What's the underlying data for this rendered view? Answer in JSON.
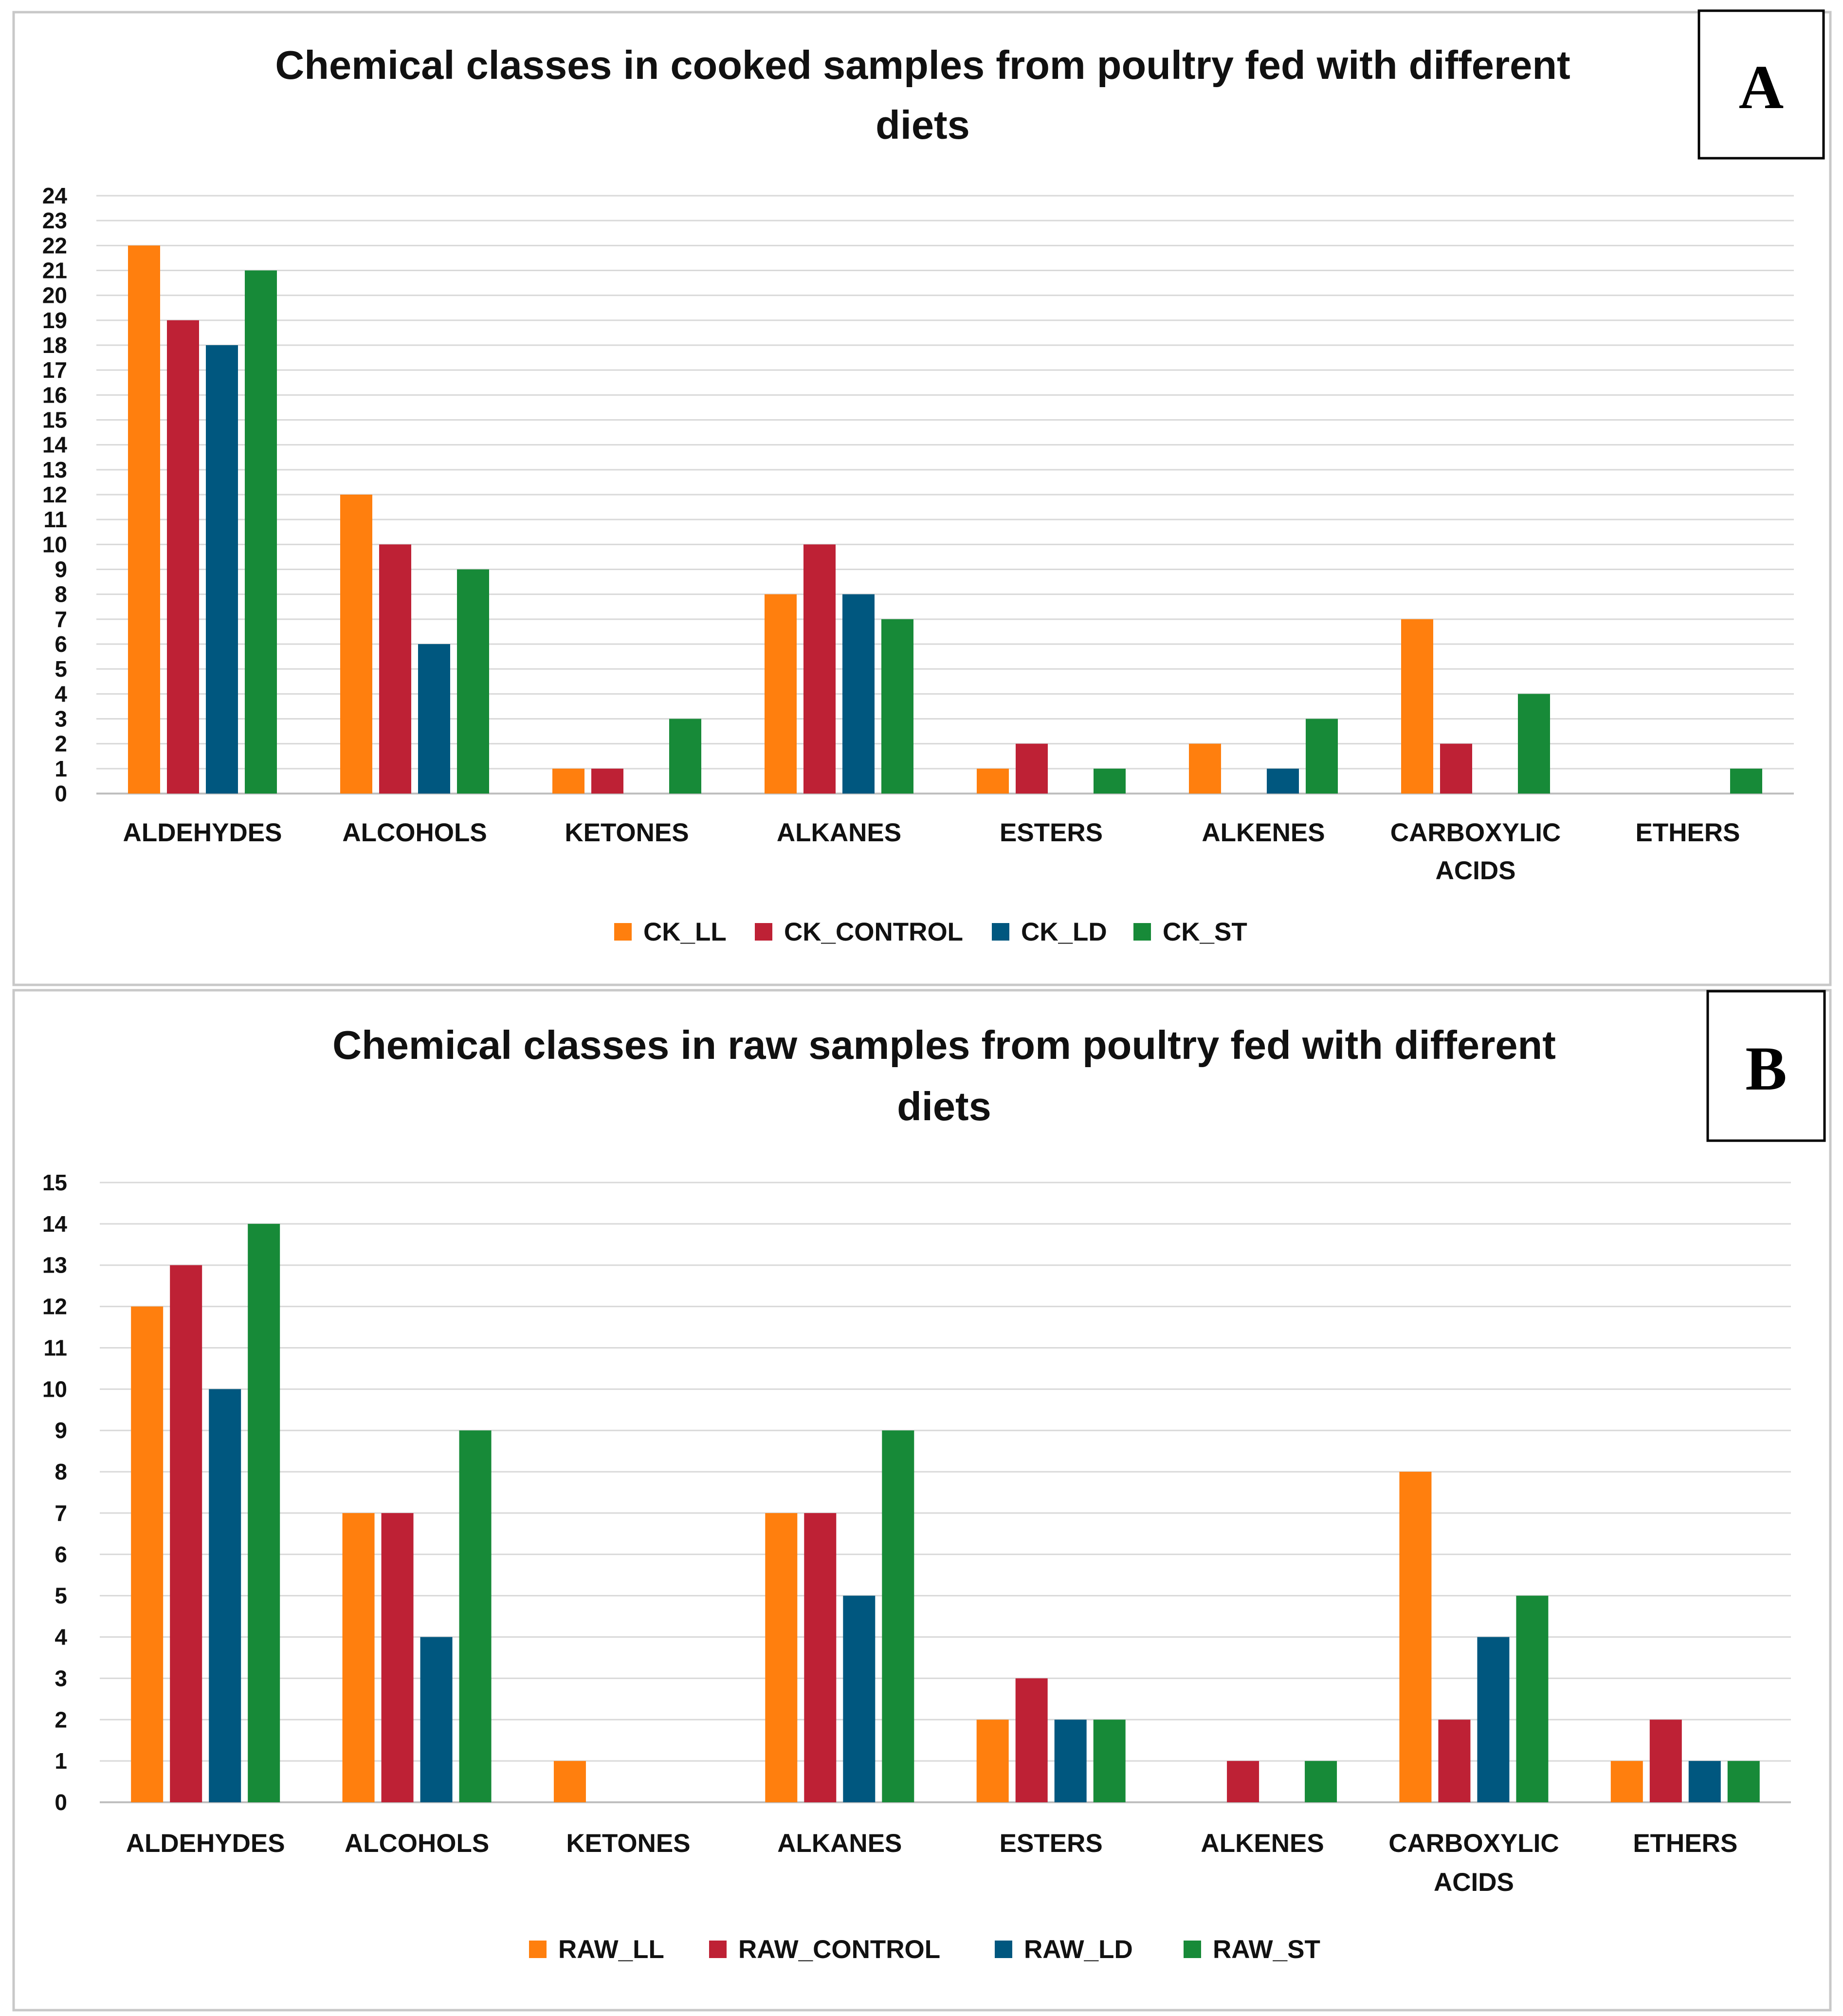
{
  "colors": {
    "orange": "#FF7F0E",
    "red": "#BE2135",
    "blue": "#00577F",
    "green": "#178A38",
    "grid": "#d9d9d9",
    "frame": "#c8c8c8"
  },
  "chart_data": [
    {
      "type": "bar",
      "panel": "A",
      "title_lines": [
        "Chemical classes in cooked samples from poultry fed with different",
        "diets"
      ],
      "categories": [
        [
          "ALDEHYDES"
        ],
        [
          "ALCOHOLS"
        ],
        [
          "KETONES"
        ],
        [
          "ALKANES"
        ],
        [
          "ESTERS"
        ],
        [
          "ALKENES"
        ],
        [
          "CARBOXYLIC",
          "ACIDS"
        ],
        [
          "ETHERS"
        ]
      ],
      "ylim": [
        0,
        24
      ],
      "ytick_step": 1,
      "grid": true,
      "legend_position": "bottom",
      "xlabel": "",
      "ylabel": "",
      "series": [
        {
          "name": "CK_LL",
          "color": "#FF7F0E",
          "values": [
            22,
            12,
            1,
            8,
            1,
            2,
            7,
            0
          ]
        },
        {
          "name": "CK_CONTROL",
          "color": "#BE2135",
          "values": [
            19,
            10,
            1,
            10,
            2,
            0,
            2,
            0
          ]
        },
        {
          "name": "CK_LD",
          "color": "#00577F",
          "values": [
            18,
            6,
            0,
            8,
            0,
            1,
            0,
            0
          ]
        },
        {
          "name": "CK_ST",
          "color": "#178A38",
          "values": [
            21,
            9,
            3,
            7,
            1,
            3,
            4,
            1
          ]
        }
      ]
    },
    {
      "type": "bar",
      "panel": "B",
      "title_lines": [
        "Chemical classes in raw samples from poultry fed with different",
        "diets"
      ],
      "categories": [
        [
          "ALDEHYDES"
        ],
        [
          "ALCOHOLS"
        ],
        [
          "KETONES"
        ],
        [
          "ALKANES"
        ],
        [
          "ESTERS"
        ],
        [
          "ALKENES"
        ],
        [
          "CARBOXYLIC",
          "ACIDS"
        ],
        [
          "ETHERS"
        ]
      ],
      "ylim": [
        0,
        15
      ],
      "ytick_step": 1,
      "grid": true,
      "legend_position": "bottom",
      "xlabel": "",
      "ylabel": "",
      "series": [
        {
          "name": "RAW_LL",
          "color": "#FF7F0E",
          "values": [
            12,
            7,
            1,
            7,
            2,
            0,
            8,
            1
          ]
        },
        {
          "name": "RAW_CONTROL",
          "color": "#BE2135",
          "values": [
            13,
            7,
            0,
            7,
            3,
            1,
            2,
            2
          ]
        },
        {
          "name": "RAW_LD",
          "color": "#00577F",
          "values": [
            10,
            4,
            0,
            5,
            2,
            0,
            4,
            1
          ]
        },
        {
          "name": "RAW_ST",
          "color": "#178A38",
          "values": [
            14,
            9,
            0,
            9,
            2,
            1,
            5,
            1
          ]
        }
      ]
    }
  ]
}
